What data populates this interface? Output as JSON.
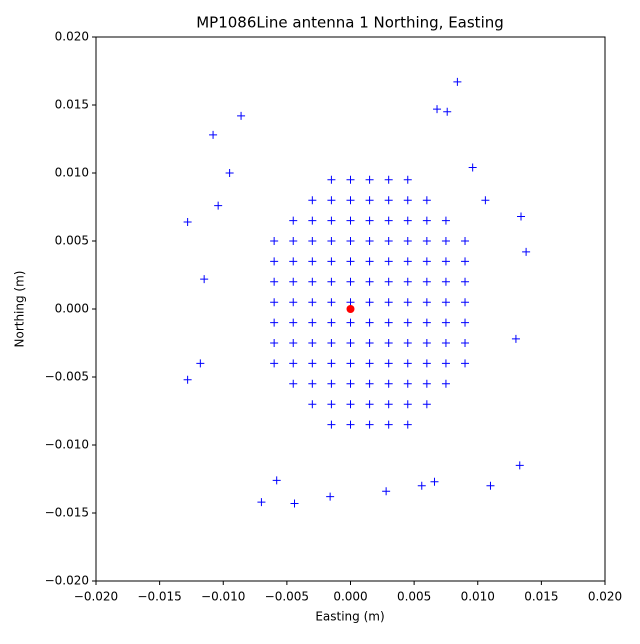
{
  "chart_data": {
    "type": "scatter",
    "title": "MP1086Line antenna 1 Northing, Easting",
    "x_label": "Easting (m)",
    "y_label": "Northing (m)",
    "xlim": [
      -0.02,
      0.02
    ],
    "ylim": [
      -0.02,
      0.02
    ],
    "xticks": [
      {
        "value": -0.02,
        "label": "−0.020"
      },
      {
        "value": -0.015,
        "label": "−0.015"
      },
      {
        "value": -0.01,
        "label": "−0.010"
      },
      {
        "value": -0.005,
        "label": "−0.005"
      },
      {
        "value": 0,
        "label": "0.000"
      },
      {
        "value": 0.005,
        "label": "0.005"
      },
      {
        "value": 0.01,
        "label": "0.010"
      },
      {
        "value": 0.015,
        "label": "0.015"
      },
      {
        "value": 0.02,
        "label": "0.020"
      }
    ],
    "yticks": [
      {
        "value": -0.02,
        "label": "−0.020"
      },
      {
        "value": -0.015,
        "label": "−0.015"
      },
      {
        "value": -0.01,
        "label": "−0.010"
      },
      {
        "value": -0.005,
        "label": "−0.005"
      },
      {
        "value": 0,
        "label": "0.000"
      },
      {
        "value": 0.005,
        "label": "0.005"
      },
      {
        "value": 0.01,
        "label": "0.010"
      },
      {
        "value": 0.015,
        "label": "0.015"
      },
      {
        "value": 0.02,
        "label": "0.020"
      }
    ],
    "series": [
      {
        "color": "#0000ff",
        "marker": "+",
        "x": [
          -0.006,
          -0.006,
          -0.006,
          -0.006,
          -0.006,
          -0.006,
          -0.006,
          -0.0045,
          -0.0045,
          -0.0045,
          -0.0045,
          -0.0045,
          -0.0045,
          -0.0045,
          -0.0045,
          -0.0045,
          -0.003,
          -0.003,
          -0.003,
          -0.003,
          -0.003,
          -0.003,
          -0.003,
          -0.003,
          -0.003,
          -0.003,
          -0.003,
          -0.0015,
          -0.0015,
          -0.0015,
          -0.0015,
          -0.0015,
          -0.0015,
          -0.0015,
          -0.0015,
          -0.0015,
          -0.0015,
          -0.0015,
          -0.0015,
          -0.0015,
          0,
          0,
          0,
          0,
          0,
          0,
          0,
          0,
          0,
          0,
          0,
          0,
          0,
          0.0015,
          0.0015,
          0.0015,
          0.0015,
          0.0015,
          0.0015,
          0.0015,
          0.0015,
          0.0015,
          0.0015,
          0.0015,
          0.0015,
          0.0015,
          0.003,
          0.003,
          0.003,
          0.003,
          0.003,
          0.003,
          0.003,
          0.003,
          0.003,
          0.003,
          0.003,
          0.003,
          0.003,
          0.0045,
          0.0045,
          0.0045,
          0.0045,
          0.0045,
          0.0045,
          0.0045,
          0.0045,
          0.0045,
          0.0045,
          0.0045,
          0.0045,
          0.0045,
          0.006,
          0.006,
          0.006,
          0.006,
          0.006,
          0.006,
          0.006,
          0.006,
          0.006,
          0.006,
          0.006,
          0.0075,
          0.0075,
          0.0075,
          0.0075,
          0.0075,
          0.0075,
          0.0075,
          0.0075,
          0.0075,
          0.009,
          0.009,
          0.009,
          0.009,
          0.009,
          0.009,
          0.009,
          -0.0128,
          -0.0128,
          -0.0108,
          -0.0086,
          0.0084,
          0.0134,
          0.0138,
          0.0133,
          0.011,
          -0.007,
          -0.0044,
          0.0028,
          -0.0016,
          0.013,
          -0.0118,
          -0.0104,
          -0.0095,
          0.0068,
          0.0076,
          -0.0115,
          0.0066,
          0.0056,
          -0.0058,
          0.0106,
          0.0096
        ],
        "values": [
          -0.004,
          -0.0025,
          -0.001,
          0.0005,
          0.002,
          0.0035,
          0.005,
          -0.0055,
          -0.004,
          -0.0025,
          -0.001,
          0.0005,
          0.002,
          0.0035,
          0.005,
          0.0065,
          -0.007,
          -0.0055,
          -0.004,
          -0.0025,
          -0.001,
          0.0005,
          0.002,
          0.0035,
          0.005,
          0.0065,
          0.008,
          -0.0085,
          -0.007,
          -0.0055,
          -0.004,
          -0.0025,
          -0.001,
          0.0005,
          0.002,
          0.0035,
          0.005,
          0.0065,
          0.008,
          0.0095,
          -0.0085,
          -0.007,
          -0.0055,
          -0.004,
          -0.0025,
          -0.001,
          0.0005,
          0.002,
          0.0035,
          0.005,
          0.0065,
          0.008,
          0.0095,
          -0.0085,
          -0.007,
          -0.0055,
          -0.004,
          -0.0025,
          -0.001,
          0.0005,
          0.002,
          0.0035,
          0.005,
          0.0065,
          0.008,
          0.0095,
          -0.0085,
          -0.007,
          -0.0055,
          -0.004,
          -0.0025,
          -0.001,
          0.0005,
          0.002,
          0.0035,
          0.005,
          0.0065,
          0.008,
          0.0095,
          -0.0085,
          -0.007,
          -0.0055,
          -0.004,
          -0.0025,
          -0.001,
          0.0005,
          0.002,
          0.0035,
          0.005,
          0.0065,
          0.008,
          0.0095,
          -0.007,
          -0.0055,
          -0.004,
          -0.0025,
          -0.001,
          0.0005,
          0.002,
          0.0035,
          0.005,
          0.0065,
          0.008,
          -0.0055,
          -0.004,
          -0.0025,
          -0.001,
          0.0005,
          0.002,
          0.0035,
          0.005,
          0.0065,
          -0.004,
          -0.0025,
          -0.001,
          0.0005,
          0.002,
          0.0035,
          0.005,
          0.0064,
          -0.0052,
          0.0128,
          0.0142,
          0.0167,
          0.0068,
          0.0042,
          -0.0115,
          -0.013,
          -0.0142,
          -0.0143,
          -0.0134,
          -0.0138,
          -0.0022,
          -0.004,
          0.0076,
          0.01,
          0.0147,
          0.0145,
          0.0022,
          -0.0127,
          -0.013,
          -0.0126,
          0.008,
          0.0104
        ]
      },
      {
        "color": "#ff0000",
        "marker": "o",
        "x": [
          0
        ],
        "values": [
          0
        ]
      }
    ]
  }
}
